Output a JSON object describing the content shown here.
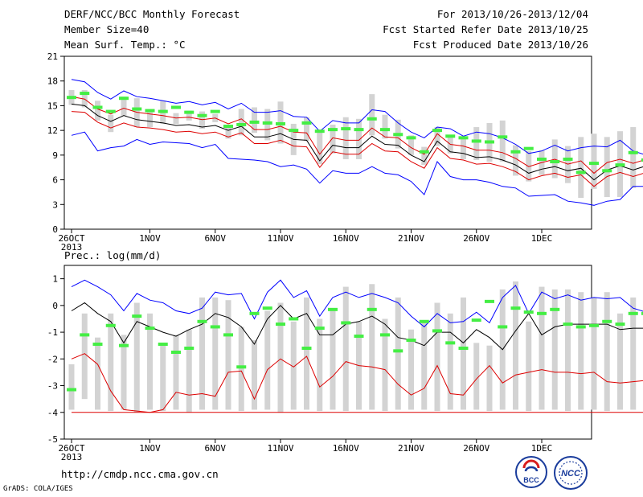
{
  "header": {
    "title": "DERF/NCC/BCC Monthly Forecast",
    "member_size": "Member Size=40",
    "variable_top": "Mean Surf. Temp.: °C",
    "forecast_period": "For 2013/10/26-2013/12/04",
    "start_date": "Fcst Started Refer Date 2013/10/25",
    "produced_date": "Fcst Produced Date 2013/10/26"
  },
  "footer": {
    "url": "http://cmdp.ncc.cma.gov.cn",
    "grads": "GrADS: COLA/IGES",
    "logo_bcc": "BCC",
    "logo_ncc": "NCC"
  },
  "colors": {
    "max_min": "#0000ff",
    "spread": "#dd0000",
    "mean": "#000000",
    "range_bar": "#d3d3d3",
    "median": "#44ee44"
  },
  "chart_data": [
    {
      "type": "line",
      "title": "Mean Surf. Temp.: °C",
      "ylim": [
        0,
        21
      ],
      "yticks": [
        0,
        3,
        6,
        9,
        12,
        15,
        18,
        21
      ],
      "grid": false,
      "xtick_labels": [
        {
          "day": 0,
          "label": "26OCT",
          "sub": "2013"
        },
        {
          "day": 6,
          "label": "1NOV"
        },
        {
          "day": 11,
          "label": "6NOV"
        },
        {
          "day": 16,
          "label": "11NOV"
        },
        {
          "day": 21,
          "label": "16NOV"
        },
        {
          "day": 26,
          "label": "21NOV"
        },
        {
          "day": 31,
          "label": "26NOV"
        },
        {
          "day": 36,
          "label": "1DEC"
        }
      ],
      "series": {
        "max": [
          18.2,
          17.9,
          16.6,
          15.8,
          16.8,
          16.1,
          15.9,
          15.6,
          15.3,
          15.5,
          15.1,
          15.4,
          14.6,
          15.3,
          14.2,
          14.2,
          14.4,
          13.7,
          13.6,
          11.9,
          13.2,
          12.9,
          12.9,
          14.5,
          14.3,
          12.9,
          11.8,
          11.1,
          12.4,
          12.2,
          11.3,
          11.8,
          11.6,
          11.1,
          10.3,
          9.2,
          9.5,
          10.2,
          9.5,
          9.9,
          10.1,
          10.0,
          10.8,
          9.5,
          9.0
        ],
        "upper": [
          16.1,
          15.8,
          14.6,
          14.0,
          14.7,
          14.2,
          14.0,
          13.8,
          13.5,
          13.6,
          13.3,
          13.5,
          12.8,
          13.4,
          12.1,
          12.1,
          12.5,
          11.8,
          11.7,
          9.1,
          11.1,
          10.8,
          10.8,
          12.3,
          11.2,
          11.1,
          9.9,
          9.1,
          11.6,
          10.3,
          10.1,
          9.6,
          9.6,
          9.3,
          8.6,
          7.6,
          8.1,
          8.5,
          7.9,
          8.3,
          6.8,
          8.1,
          8.5,
          8.0,
          8.5
        ],
        "mean": [
          15.2,
          15.0,
          13.8,
          13.1,
          13.8,
          13.3,
          13.1,
          12.9,
          12.6,
          12.7,
          12.4,
          12.6,
          12.0,
          12.5,
          11.2,
          11.2,
          11.6,
          10.9,
          10.8,
          8.3,
          10.2,
          9.9,
          9.9,
          11.3,
          10.3,
          10.2,
          9.0,
          8.2,
          10.7,
          9.4,
          9.2,
          8.7,
          8.8,
          8.4,
          7.8,
          6.8,
          7.3,
          7.6,
          7.1,
          7.4,
          6.0,
          7.2,
          7.7,
          7.2,
          7.7
        ],
        "lower": [
          14.3,
          14.2,
          13.0,
          12.3,
          12.9,
          12.4,
          12.3,
          12.1,
          11.8,
          11.9,
          11.6,
          11.8,
          11.2,
          11.7,
          10.4,
          10.4,
          10.8,
          10.1,
          10.0,
          7.5,
          9.4,
          9.1,
          9.1,
          10.4,
          9.5,
          9.4,
          8.2,
          7.4,
          9.9,
          8.6,
          8.4,
          7.9,
          8.0,
          7.6,
          7.0,
          6.0,
          6.5,
          6.8,
          6.3,
          6.6,
          5.2,
          6.4,
          6.9,
          6.4,
          6.9
        ],
        "min": [
          11.4,
          11.8,
          9.5,
          9.9,
          10.1,
          10.9,
          10.3,
          10.6,
          10.5,
          10.4,
          9.9,
          10.3,
          8.6,
          8.5,
          8.4,
          8.2,
          7.6,
          7.8,
          7.3,
          5.6,
          7.1,
          6.8,
          6.8,
          7.6,
          6.8,
          6.6,
          5.8,
          4.2,
          8.2,
          6.4,
          6.0,
          6.0,
          5.7,
          5.2,
          5.0,
          4.0,
          4.1,
          4.2,
          3.4,
          3.2,
          2.9,
          3.4,
          3.6,
          5.2,
          5.2
        ],
        "range_low": [
          15.1,
          14.8,
          13.2,
          11.8,
          13.8,
          12.4,
          12.4,
          12.8,
          12.8,
          13.2,
          12.2,
          13.0,
          11.0,
          11.4,
          11.7,
          10.8,
          10.4,
          9.0,
          10.7,
          7.9,
          9.2,
          8.5,
          8.5,
          11.4,
          11.0,
          9.8,
          9.0,
          7.8,
          10.1,
          9.2,
          8.5,
          8.4,
          8.2,
          8.2,
          6.5,
          5.8,
          6.6,
          6.2,
          5.6,
          3.8,
          4.9,
          3.9,
          3.9,
          5.0,
          5.9
        ],
        "range_high": [
          16.9,
          16.9,
          15.6,
          13.9,
          16.1,
          15.9,
          14.3,
          15.6,
          14.1,
          14.4,
          14.3,
          14.0,
          12.6,
          14.6,
          14.8,
          14.6,
          15.5,
          12.8,
          13.6,
          11.8,
          12.7,
          13.6,
          13.4,
          16.4,
          13.9,
          13.3,
          11.4,
          10.0,
          12.4,
          11.3,
          11.3,
          12.4,
          12.9,
          13.2,
          10.2,
          9.5,
          9.6,
          10.9,
          10.1,
          11.2,
          11.6,
          11.2,
          11.9,
          12.4,
          10.4
        ],
        "median": [
          16.0,
          16.5,
          14.8,
          14.3,
          15.9,
          14.6,
          14.4,
          14.3,
          14.8,
          14.2,
          13.8,
          14.3,
          12.5,
          12.7,
          13.0,
          12.9,
          12.8,
          12.0,
          12.9,
          11.9,
          12.1,
          12.2,
          12.1,
          13.4,
          12.1,
          11.5,
          11.1,
          9.4,
          12.0,
          11.3,
          11.1,
          10.7,
          10.6,
          11.2,
          9.4,
          9.8,
          8.5,
          8.2,
          8.5,
          6.9,
          8.0,
          7.1,
          7.8,
          9.3,
          8.4
        ]
      }
    },
    {
      "type": "line",
      "title": "Prec.: log(mm/d)",
      "ylim": [
        -5,
        1.5
      ],
      "yticks": [
        -5,
        -4,
        -3,
        -2,
        -1,
        0,
        1
      ],
      "grid": false,
      "xtick_labels": [
        {
          "day": 0,
          "label": "26OCT",
          "sub": "2013"
        },
        {
          "day": 6,
          "label": "1NOV"
        },
        {
          "day": 11,
          "label": "6NOV"
        },
        {
          "day": 16,
          "label": "11NOV"
        },
        {
          "day": 21,
          "label": "16NOV"
        },
        {
          "day": 26,
          "label": "21NOV"
        },
        {
          "day": 31,
          "label": "26NOV"
        },
        {
          "day": 36,
          "label": "1DEC"
        }
      ],
      "series": {
        "max": [
          0.7,
          0.95,
          0.7,
          0.4,
          -0.2,
          0.45,
          0.2,
          0.1,
          -0.2,
          -0.3,
          -0.1,
          0.5,
          0.4,
          0.45,
          -0.5,
          0.5,
          0.95,
          0.3,
          0.55,
          -0.4,
          0.3,
          0.5,
          0.3,
          0.45,
          0.3,
          0.1,
          -0.4,
          -0.8,
          -0.3,
          -0.65,
          -0.6,
          -0.25,
          -0.65,
          0.3,
          0.75,
          -0.3,
          0.5,
          0.25,
          0.4,
          0.2,
          0.3,
          0.25,
          0.3,
          -0.1,
          -0.25
        ],
        "mean": [
          -0.2,
          0.1,
          -0.3,
          -0.6,
          -1.4,
          -0.6,
          -0.8,
          -1.0,
          -1.15,
          -0.9,
          -0.7,
          -0.3,
          -0.45,
          -0.8,
          -1.45,
          -0.5,
          0.0,
          -0.5,
          -0.3,
          -1.1,
          -1.1,
          -0.7,
          -0.6,
          -0.4,
          -0.7,
          -1.2,
          -1.3,
          -1.5,
          -1.0,
          -1.0,
          -1.4,
          -0.9,
          -1.2,
          -1.65,
          -0.95,
          -0.3,
          -1.1,
          -0.8,
          -0.7,
          -0.7,
          -0.7,
          -0.7,
          -0.9,
          -0.85,
          -0.85
        ],
        "min": [
          -2.0,
          -1.8,
          -2.2,
          -3.2,
          -3.9,
          -3.95,
          -4.0,
          -3.9,
          -3.25,
          -3.35,
          -3.3,
          -3.4,
          -2.5,
          -2.45,
          -3.5,
          -2.4,
          -2.0,
          -2.3,
          -1.9,
          -3.05,
          -2.65,
          -2.1,
          -2.25,
          -2.3,
          -2.4,
          -2.95,
          -3.35,
          -3.1,
          -2.25,
          -3.3,
          -3.35,
          -2.75,
          -2.25,
          -2.9,
          -2.6,
          -2.5,
          -2.4,
          -2.5,
          -2.5,
          -2.55,
          -2.5,
          -2.85,
          -2.9,
          -2.85,
          -2.8
        ],
        "floor": -4.0,
        "range_low": [
          -3.9,
          -3.5,
          -3.9,
          -3.95,
          -3.9,
          -4.0,
          -3.9,
          -3.95,
          -3.9,
          -4.0,
          -3.9,
          -3.9,
          -3.9,
          -3.95,
          -3.9,
          -3.9,
          -4.0,
          -3.9,
          -3.9,
          -3.95,
          -3.9,
          -3.95,
          -3.9,
          -3.9,
          -3.95,
          -3.9,
          -3.9,
          -3.9,
          -3.95,
          -3.9,
          -3.9,
          -3.9,
          -3.95,
          -3.9,
          -3.9,
          -3.95,
          -3.9,
          -3.9,
          -3.95,
          -3.9,
          -3.9,
          -3.95,
          -3.9,
          -3.9,
          -3.95
        ],
        "range_high": [
          -2.2,
          -0.3,
          -1.2,
          -0.3,
          -1.1,
          0.1,
          -0.3,
          -1.4,
          -1.1,
          -0.9,
          0.3,
          0.3,
          0.2,
          -0.8,
          -1.3,
          -0.2,
          0.1,
          -0.6,
          0.3,
          -0.5,
          -0.2,
          0.7,
          -0.6,
          0.8,
          -0.5,
          0.3,
          -0.9,
          -0.6,
          0.1,
          -0.3,
          0.3,
          -1.4,
          -1.5,
          0.6,
          0.9,
          -0.6,
          0.7,
          0.6,
          0.6,
          0.5,
          0.3,
          0.5,
          -0.3,
          0.3,
          0.1
        ],
        "median": [
          -3.15,
          -1.1,
          -1.45,
          -0.75,
          -1.5,
          -0.4,
          -0.85,
          -1.45,
          -1.75,
          -1.6,
          -0.6,
          -0.8,
          -1.1,
          -2.3,
          -0.3,
          -0.1,
          -0.7,
          -0.5,
          -1.6,
          -0.85,
          -0.15,
          -0.65,
          -1.15,
          -0.15,
          -1.1,
          -1.7,
          -1.3,
          -0.6,
          -0.95,
          -1.4,
          -1.6,
          -0.55,
          0.15,
          -0.8,
          -0.1,
          -0.25,
          -0.3,
          -0.15,
          -0.7,
          -0.8,
          -0.75,
          -0.6,
          -0.7,
          -0.3,
          -0.3
        ]
      }
    }
  ]
}
